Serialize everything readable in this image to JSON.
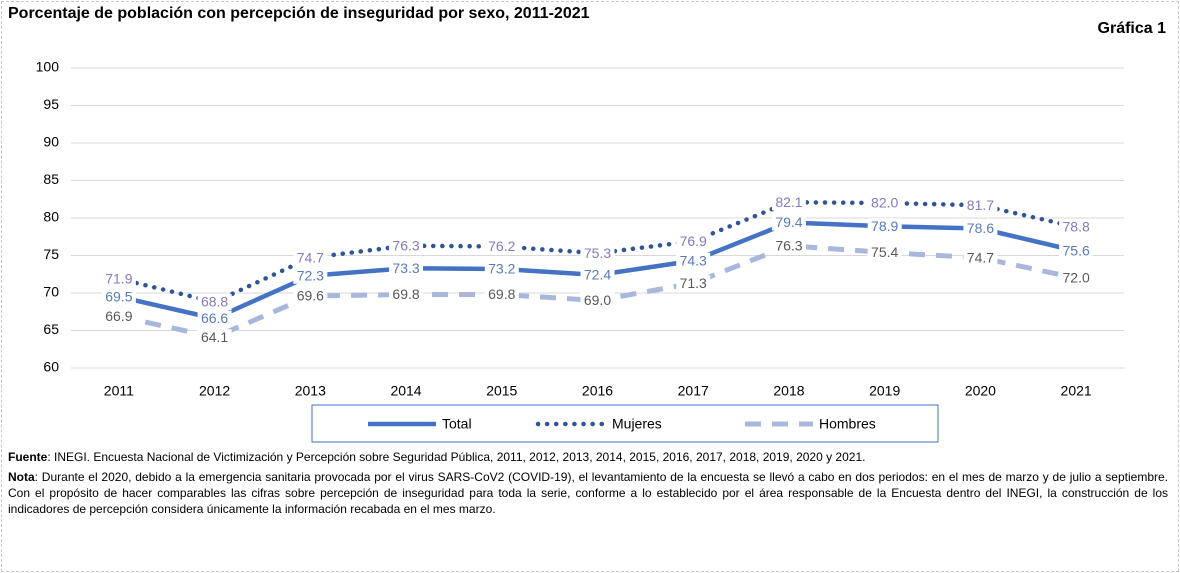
{
  "chart_data": {
    "type": "line",
    "title": "Porcentaje de población con percepción de inseguridad por sexo, 2011-2021",
    "chart_number": "Gráfica 1",
    "categories": [
      "2011",
      "2012",
      "2013",
      "2014",
      "2015",
      "2016",
      "2017",
      "2018",
      "2019",
      "2020",
      "2021"
    ],
    "series": [
      {
        "name": "Total",
        "color": "#4472c4",
        "label_color": "#5a7ab8",
        "values": [
          69.5,
          66.6,
          72.3,
          73.3,
          73.2,
          72.4,
          74.3,
          79.4,
          78.9,
          78.6,
          75.6
        ],
        "value_labels": [
          "69.5",
          "66.6",
          "72.3",
          "73.3",
          "73.2",
          "72.4",
          "74.3",
          "79.4",
          "78.9",
          "78.6",
          "75.6"
        ]
      },
      {
        "name": "Mujeres",
        "color": "#2f5597",
        "label_color": "#8579c0",
        "values": [
          71.9,
          68.8,
          74.7,
          76.3,
          76.2,
          75.3,
          76.9,
          82.1,
          82.0,
          81.7,
          78.8
        ],
        "value_labels": [
          "71.9",
          "68.8",
          "74.7",
          "76.3",
          "76.2",
          "75.3",
          "76.9",
          "82.1",
          "82.0",
          "81.7",
          "78.8"
        ]
      },
      {
        "name": "Hombres",
        "color": "#a9b7dd",
        "label_color": "#595959",
        "values": [
          66.9,
          64.1,
          69.6,
          69.8,
          69.8,
          69.0,
          71.3,
          76.3,
          75.4,
          74.7,
          72.0
        ],
        "value_labels": [
          "66.9",
          "64.1",
          "69.6",
          "69.8",
          "69.8",
          "69.0",
          "71.3",
          "76.3",
          "75.4",
          "74.7",
          "72.0"
        ]
      }
    ],
    "ylim": [
      60,
      100
    ],
    "yticks": [
      60,
      65,
      70,
      75,
      80,
      85,
      90,
      95,
      100
    ],
    "grid": true
  },
  "notes": {
    "source_label": "Fuente",
    "source_text": ": INEGI. Encuesta Nacional de Victimización y Percepción sobre Seguridad Pública, 2011, 2012, 2013, 2014, 2015, 2016, 2017, 2018, 2019, 2020 y 2021.",
    "note_label": "Nota",
    "note_text": ": Durante el 2020, debido a la emergencia sanitaria provocada por el virus SARS-CoV2 (COVID-19), el levantamiento de la encuesta se llevó a cabo en dos periodos: en el mes de marzo y de julio a septiembre. Con el propósito de hacer comparables las cifras sobre percepción de inseguridad para toda la serie, conforme a lo establecido por el área responsable de la Encuesta dentro del INEGI, la construcción de los indicadores de percepción considera únicamente la información recabada en el mes marzo."
  }
}
